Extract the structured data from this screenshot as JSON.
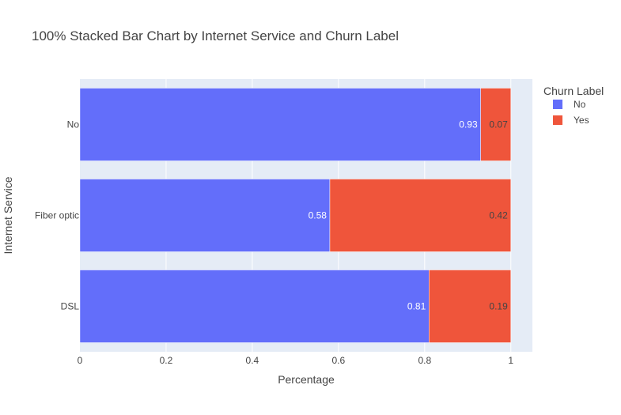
{
  "chart_data": {
    "type": "bar",
    "orientation": "horizontal",
    "barmode": "stack",
    "title": "100% Stacked Bar Chart by Internet Service and Churn Label",
    "xlabel": "Percentage",
    "ylabel": "Internet Service",
    "xlim": [
      0,
      1.05
    ],
    "x_ticks": [
      "0",
      "0.2",
      "0.4",
      "0.6",
      "0.8",
      "1"
    ],
    "x_tick_values": [
      0,
      0.2,
      0.4,
      0.6,
      0.8,
      1
    ],
    "categories": [
      "No",
      "Fiber optic",
      "DSL"
    ],
    "legend_title": "Churn Label",
    "legend_position": "top-right",
    "grid": true,
    "series": [
      {
        "name": "No",
        "color": "#636efa",
        "values": [
          0.93,
          0.58,
          0.81
        ],
        "labels": [
          "0.93",
          "0.58",
          "0.81"
        ]
      },
      {
        "name": "Yes",
        "color": "#ef553b",
        "values": [
          0.07,
          0.42,
          0.19
        ],
        "labels": [
          "0.07",
          "0.42",
          "0.19"
        ]
      }
    ],
    "plot_bg": "#e5ecf6"
  }
}
